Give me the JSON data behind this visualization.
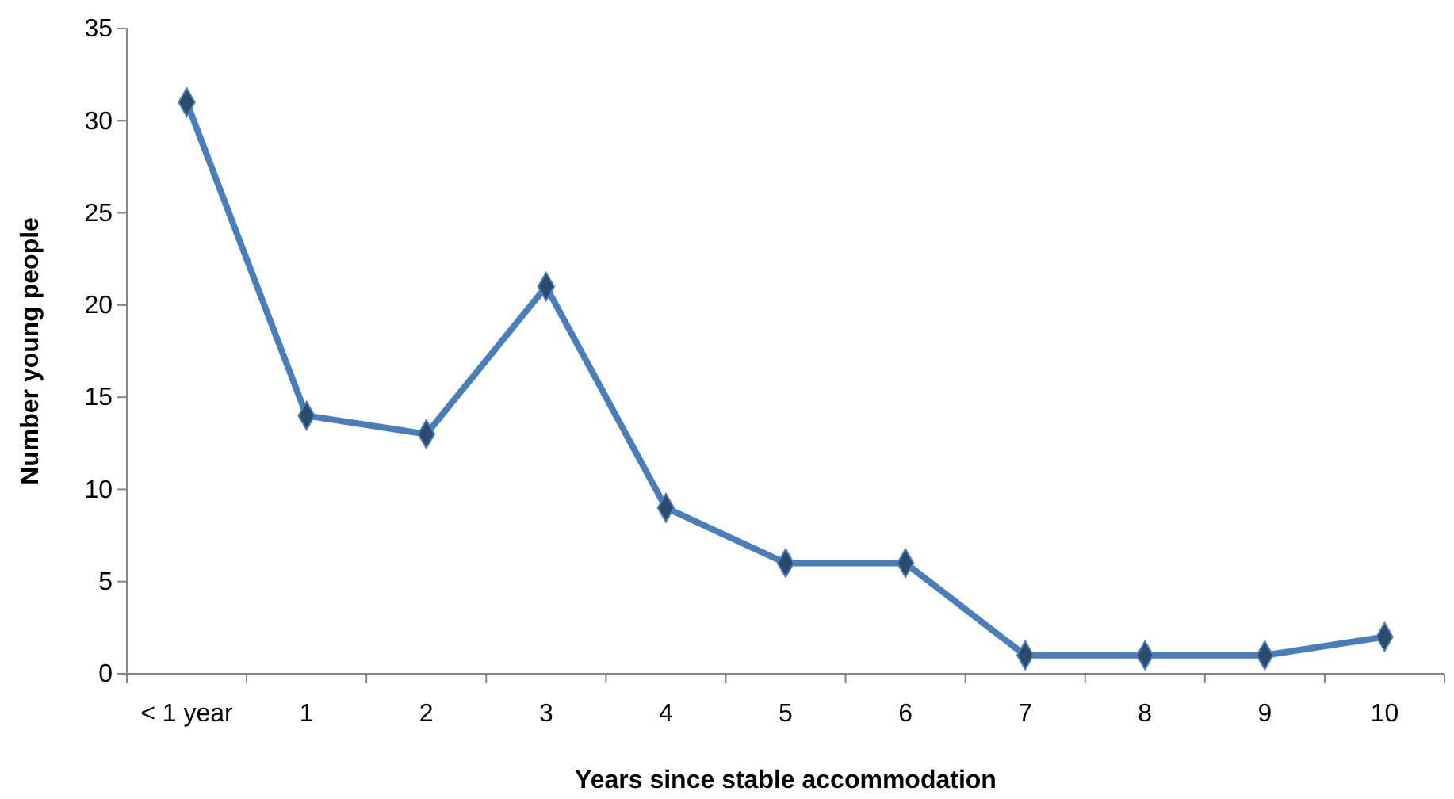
{
  "chart_data": {
    "type": "line",
    "xlabel": "Years since stable accommodation",
    "ylabel": "Number young people",
    "categories": [
      "< 1 year",
      "1",
      "2",
      "3",
      "4",
      "5",
      "6",
      "7",
      "8",
      "9",
      "10"
    ],
    "series": [
      {
        "color": "#4a7ebb",
        "values": [
          31,
          14,
          13,
          21,
          9,
          6,
          6,
          1,
          1,
          1,
          2
        ]
      }
    ],
    "ylim": [
      0,
      35
    ],
    "yticks": [
      0,
      5,
      10,
      15,
      20,
      25,
      30,
      35
    ],
    "grid": false,
    "marker": "diamond",
    "line_style": "solid"
  }
}
